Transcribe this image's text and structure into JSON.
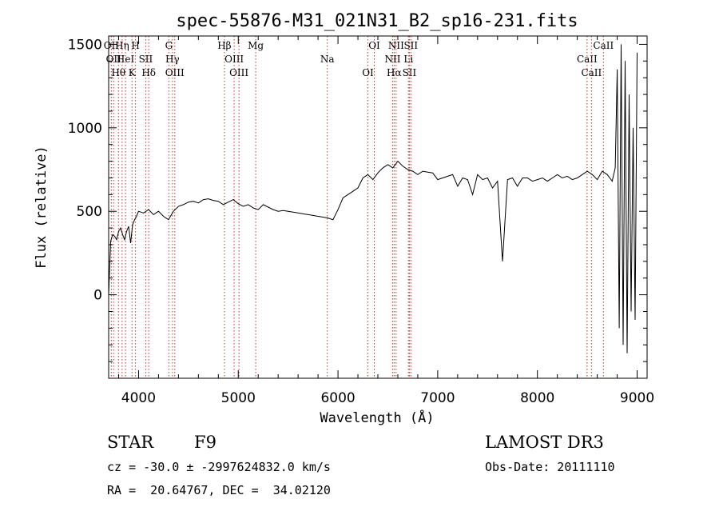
{
  "chart_data": {
    "type": "line",
    "title": "spec-55876-M31_021N31_B2_sp16-231.fits",
    "xlabel": "Wavelength (Å)",
    "ylabel": "Flux (relative)",
    "xlim": [
      3700,
      9100
    ],
    "ylim": [
      -500,
      1550
    ],
    "xticks": [
      4000,
      5000,
      6000,
      7000,
      8000,
      9000
    ],
    "yticks": [
      0,
      500,
      1000,
      1500
    ],
    "grid": false,
    "series": [
      {
        "x": [
          3700,
          3720,
          3740,
          3760,
          3780,
          3800,
          3820,
          3840,
          3860,
          3880,
          3900,
          3920,
          3940,
          3960,
          3980,
          4000,
          4050,
          4100,
          4150,
          4200,
          4250,
          4300,
          4350,
          4400,
          4450,
          4500,
          4550,
          4600,
          4650,
          4700,
          4750,
          4800,
          4850,
          4900,
          4950,
          5000,
          5050,
          5100,
          5150,
          5200,
          5250,
          5300,
          5350,
          5400,
          5450,
          5500,
          5550,
          5600,
          5650,
          5700,
          5750,
          5800,
          5850,
          5900,
          5950,
          6000,
          6050,
          6100,
          6150,
          6200,
          6250,
          6300,
          6350,
          6400,
          6450,
          6500,
          6550,
          6600,
          6650,
          6700,
          6750,
          6800,
          6850,
          6900,
          6950,
          7000,
          7050,
          7100,
          7150,
          7200,
          7250,
          7300,
          7350,
          7400,
          7450,
          7500,
          7550,
          7600,
          7650,
          7700,
          7750,
          7800,
          7850,
          7900,
          7950,
          8000,
          8050,
          8100,
          8150,
          8200,
          8250,
          8300,
          8350,
          8400,
          8450,
          8500,
          8550,
          8600,
          8650,
          8700,
          8750,
          8780,
          8800,
          8820,
          8840,
          8860,
          8880,
          8900,
          8920,
          8940,
          8960,
          8980,
          9000
        ],
        "y": [
          0,
          320,
          360,
          350,
          330,
          380,
          400,
          360,
          330,
          380,
          410,
          310,
          420,
          450,
          470,
          500,
          490,
          510,
          480,
          500,
          470,
          450,
          500,
          530,
          540,
          555,
          560,
          550,
          570,
          575,
          565,
          560,
          540,
          555,
          570,
          545,
          530,
          540,
          520,
          510,
          540,
          525,
          510,
          500,
          505,
          500,
          495,
          490,
          485,
          480,
          475,
          470,
          465,
          460,
          450,
          510,
          580,
          600,
          620,
          640,
          700,
          720,
          690,
          730,
          760,
          780,
          760,
          800,
          770,
          750,
          740,
          720,
          740,
          735,
          730,
          690,
          700,
          710,
          720,
          650,
          700,
          690,
          600,
          720,
          690,
          700,
          640,
          680,
          200,
          690,
          700,
          650,
          700,
          700,
          680,
          690,
          700,
          680,
          700,
          720,
          700,
          710,
          690,
          700,
          720,
          740,
          720,
          690,
          740,
          720,
          680,
          760,
          1350,
          -200,
          1500,
          -300,
          1400,
          -350,
          1200,
          -100,
          1000,
          -150,
          1450
        ]
      }
    ],
    "line_markers": [
      {
        "x": 3727,
        "label": "OII"
      },
      {
        "x": 3750,
        "label": "OII"
      },
      {
        "x": 3798,
        "label": "Hθ"
      },
      {
        "x": 3835,
        "label": "Hη"
      },
      {
        "x": 3869,
        "label": "HeI"
      },
      {
        "x": 3934,
        "label": "K"
      },
      {
        "x": 3969,
        "label": "H"
      },
      {
        "x": 4072,
        "label": "SII"
      },
      {
        "x": 4102,
        "label": "Hδ"
      },
      {
        "x": 4304,
        "label": "G"
      },
      {
        "x": 4340,
        "label": "Hγ"
      },
      {
        "x": 4363,
        "label": "OIII"
      },
      {
        "x": 4861,
        "label": "Hβ"
      },
      {
        "x": 4959,
        "label": "OIII"
      },
      {
        "x": 5007,
        "label": "OIII"
      },
      {
        "x": 5175,
        "label": "Mg"
      },
      {
        "x": 5893,
        "label": "Na"
      },
      {
        "x": 6300,
        "label": "OI"
      },
      {
        "x": 6364,
        "label": "OI"
      },
      {
        "x": 6548,
        "label": "NII"
      },
      {
        "x": 6563,
        "label": "Hα"
      },
      {
        "x": 6583,
        "label": "NII"
      },
      {
        "x": 6707,
        "label": "Li"
      },
      {
        "x": 6716,
        "label": "SII"
      },
      {
        "x": 6731,
        "label": "SII"
      },
      {
        "x": 8498,
        "label": "CaII"
      },
      {
        "x": 8542,
        "label": "CaII"
      },
      {
        "x": 8662,
        "label": "CaII"
      }
    ]
  },
  "info": {
    "class": "STAR",
    "subclass": "F9",
    "cz": "cz = -30.0 ± -2997624832.0 km/s",
    "coords": "RA =  20.64767, DEC =  34.02120",
    "survey": "LAMOST DR3",
    "obs_date": "Obs-Date: 20111110"
  }
}
